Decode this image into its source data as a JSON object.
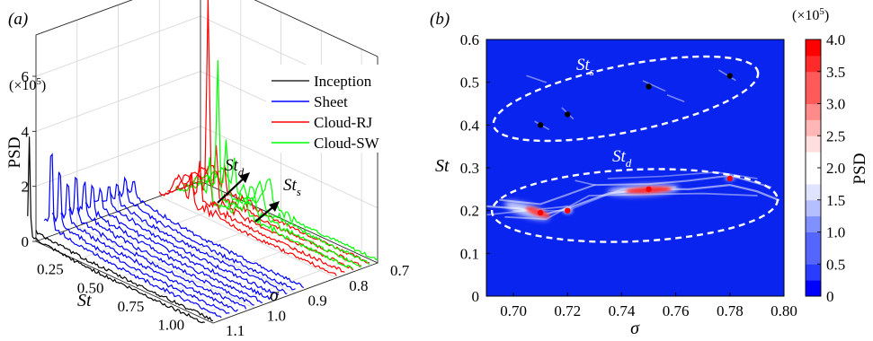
{
  "panel_a": {
    "label": "(a)",
    "multiplier": "(×10",
    "multiplier_exp": "5",
    "multiplier_close": ")",
    "zlabel": "PSD",
    "xlabel": "St",
    "ylabel": "σ",
    "z_ticks": [
      "0",
      "2",
      "4",
      "6"
    ],
    "st_ticks": [
      "0.25",
      "0.50",
      "0.75",
      "1.00"
    ],
    "sigma_ticks": [
      "0.7",
      "0.8",
      "0.9",
      "1.0",
      "1.1"
    ],
    "legend": [
      "Inception",
      "Sheet",
      "Cloud-RJ",
      "Cloud-SW"
    ],
    "annot_d": "St",
    "annot_d_sub": "d",
    "annot_s": "St",
    "annot_s_sub": "s"
  },
  "panel_b": {
    "label": "(b)",
    "xlabel": "σ",
    "ylabel": "St",
    "x_ticks": [
      "0.70",
      "0.72",
      "0.74",
      "0.76",
      "0.78",
      "0.80"
    ],
    "y_ticks": [
      "0",
      "0.1",
      "0.2",
      "0.3",
      "0.4",
      "0.5",
      "0.6"
    ],
    "label_s": "St",
    "label_s_sub": "s",
    "label_d": "St",
    "label_d_sub": "d",
    "cb_label": "PSD",
    "cb_multiplier": "(×10",
    "cb_multiplier_exp": "5",
    "cb_multiplier_close": ")",
    "cb_ticks": [
      "0",
      "0.5",
      "1.0",
      "1.5",
      "2.0",
      "2.5",
      "3.0",
      "3.5",
      "4.0"
    ]
  },
  "colors": {
    "inception": "#000000",
    "sheet": "#0000ff",
    "cloud_rj": "#ff0000",
    "cloud_sw": "#00ff00",
    "map_background": "#0a24f0",
    "dashed_ellipse": "#ffffff"
  },
  "chart_data": [
    {
      "type": "line",
      "view": "3d-waterfall",
      "x_axis": "St",
      "xlim": [
        0,
        1.1
      ],
      "y_axis": "sigma",
      "ylim": [
        0.7,
        1.1
      ],
      "zlim": [
        0,
        7.5
      ],
      "series": [
        {
          "name": "Inception",
          "sigma": [
            1.12,
            1.1
          ],
          "peak_st": 0.02,
          "peak_psd": 3.7
        },
        {
          "name": "Sheet",
          "sigma": [
            1.08,
            1.06,
            1.04,
            1.02,
            1.0,
            0.98,
            0.96,
            0.94,
            0.92,
            0.9,
            0.88
          ],
          "peak_st": 0.05,
          "peak_psd": 3.2
        },
        {
          "name": "Cloud-RJ",
          "sigma": [
            0.8,
            0.78,
            0.76,
            0.74,
            0.72
          ],
          "peak_st": 0.2,
          "peak_psd": 7.3
        },
        {
          "name": "Cloud-SW",
          "sigma": [
            0.76,
            0.74,
            0.72,
            0.7
          ],
          "peak_st": 0.21,
          "peak_psd": 5.0
        }
      ],
      "annotations": [
        "St_d",
        "St_s"
      ]
    },
    {
      "type": "heatmap",
      "x_axis": "sigma",
      "xlim": [
        0.69,
        0.8
      ],
      "y_axis": "St",
      "ylim": [
        0,
        0.6
      ],
      "colorbar_range": [
        0,
        4.0
      ],
      "black_points": [
        [
          0.71,
          0.4
        ],
        [
          0.72,
          0.425
        ],
        [
          0.75,
          0.49
        ],
        [
          0.78,
          0.515
        ]
      ],
      "red_points": [
        [
          0.71,
          0.195
        ],
        [
          0.72,
          0.2
        ],
        [
          0.75,
          0.25
        ],
        [
          0.78,
          0.275
        ]
      ],
      "hotspots": [
        {
          "sigma": 0.71,
          "st": 0.195,
          "psd": 3.9
        },
        {
          "sigma": 0.75,
          "st": 0.25,
          "psd": 4.0
        }
      ],
      "regions": [
        "St_s",
        "St_d"
      ]
    }
  ]
}
